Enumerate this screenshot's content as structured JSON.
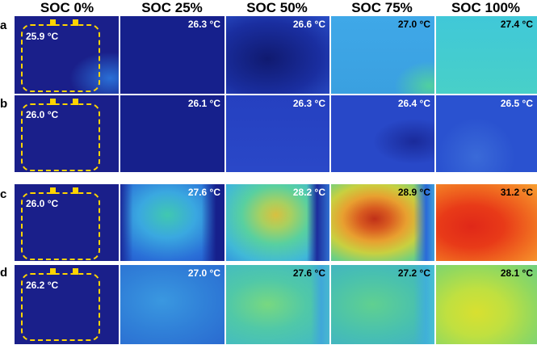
{
  "columns": [
    "SOC 0%",
    "SOC 25%",
    "SOC 50%",
    "SOC 75%",
    "SOC 100%"
  ],
  "rows": [
    {
      "label": "a",
      "temps": [
        "25.9 °C",
        "26.3 °C",
        "26.6 °C",
        "27.0 °C",
        "27.4 °C"
      ]
    },
    {
      "label": "b",
      "temps": [
        "26.0 °C",
        "26.1 °C",
        "26.3 °C",
        "26.4 °C",
        "26.5 °C"
      ]
    },
    {
      "label": "c",
      "temps": [
        "26.0 °C",
        "27.6 °C",
        "28.2 °C",
        "28.9 °C",
        "31.2 °C"
      ]
    },
    {
      "label": "d",
      "temps": [
        "26.2 °C",
        "27.0 °C",
        "27.6 °C",
        "27.2 °C",
        "28.1 °C"
      ]
    }
  ],
  "colors": {
    "outline": "#ffd400",
    "temp_text_light": "#ffffff",
    "temp_text_dark": "#000000"
  }
}
